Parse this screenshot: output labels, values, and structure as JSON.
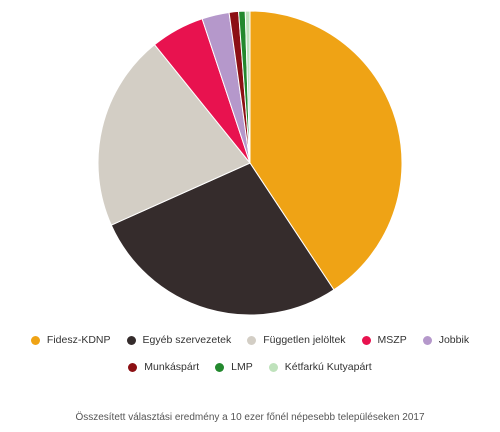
{
  "chart_data": {
    "type": "pie",
    "start_angle_deg": 0,
    "direction": "clockwise",
    "slices": [
      {
        "label": "Fidesz-KDNP",
        "value": 40.7,
        "color": "#EFA315"
      },
      {
        "label": "Egyéb szervezetek",
        "value": 27.6,
        "color": "#352C2C"
      },
      {
        "label": "Független jelöltek",
        "value": 20.9,
        "color": "#D3CEC5"
      },
      {
        "label": "MSZP",
        "value": 5.7,
        "color": "#E8124F"
      },
      {
        "label": "Jobbik",
        "value": 2.9,
        "color": "#B598CB"
      },
      {
        "label": "Munkáspárt",
        "value": 1.0,
        "color": "#8C1014"
      },
      {
        "label": "LMP",
        "value": 0.7,
        "color": "#23892E"
      },
      {
        "label": "Kétfarkú Kutyapárt",
        "value": 0.5,
        "color": "#BFE2BC"
      }
    ],
    "legend_position": "bottom"
  },
  "caption": "Összesített választási eredmény a 10 ezer főnél népesebb településeken 2017"
}
